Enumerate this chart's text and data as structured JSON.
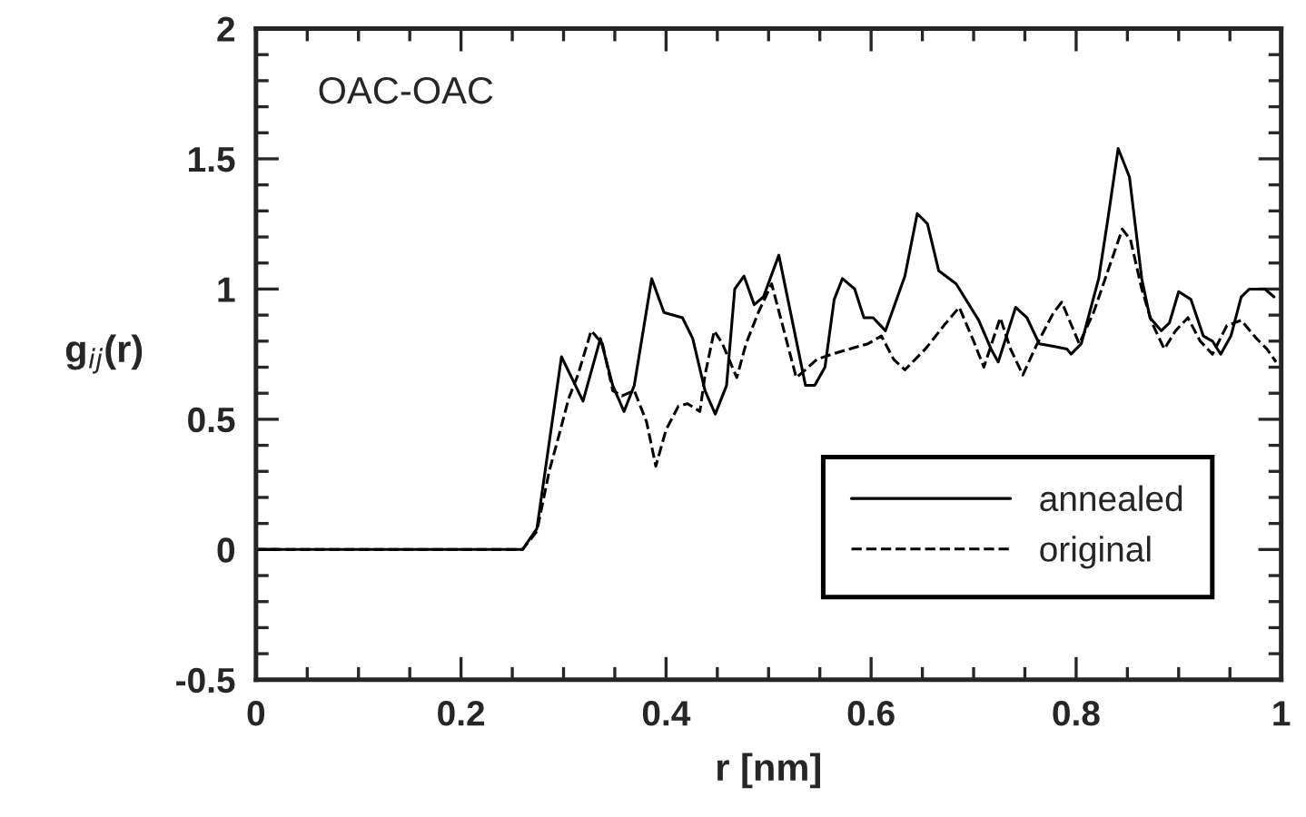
{
  "chart_data": {
    "type": "line",
    "xlabel": "r [nm]",
    "ylabel": "g$_{ij}$(r)",
    "annotations": [
      "OAC-OAC"
    ],
    "xlim": [
      0,
      1
    ],
    "ylim": [
      -0.5,
      2
    ],
    "xticks": [
      0,
      0.2,
      0.4,
      0.6,
      0.8,
      1
    ],
    "yticks": [
      -0.5,
      0,
      0.5,
      1,
      1.5,
      2
    ],
    "grid": false,
    "legend": "bottom right",
    "marker": "none",
    "series": [
      {
        "name": "annealed",
        "color": "#000000",
        "line_style": "solid",
        "x": [
          0,
          0.26,
          0.274,
          0.298,
          0.319,
          0.336,
          0.348,
          0.359,
          0.369,
          0.386,
          0.398,
          0.416,
          0.426,
          0.438,
          0.448,
          0.459,
          0.467,
          0.476,
          0.486,
          0.495,
          0.51,
          0.536,
          0.545,
          0.555,
          0.564,
          0.572,
          0.584,
          0.593,
          0.602,
          0.614,
          0.633,
          0.645,
          0.655,
          0.666,
          0.683,
          0.705,
          0.717,
          0.724,
          0.741,
          0.752,
          0.764,
          0.778,
          0.791,
          0.795,
          0.805,
          0.822,
          0.831,
          0.841,
          0.852,
          0.864,
          0.872,
          0.883,
          0.891,
          0.9,
          0.912,
          0.924,
          0.933,
          0.941,
          0.951,
          0.961,
          0.969,
          0.984,
          0.993
        ],
        "values": [
          0,
          0,
          0.08,
          0.74,
          0.57,
          0.81,
          0.63,
          0.53,
          0.63,
          1.04,
          0.91,
          0.89,
          0.81,
          0.61,
          0.52,
          0.63,
          1.0,
          1.05,
          0.94,
          0.97,
          1.13,
          0.63,
          0.63,
          0.7,
          0.96,
          1.04,
          1.0,
          0.89,
          0.89,
          0.84,
          1.05,
          1.29,
          1.25,
          1.07,
          1.02,
          0.88,
          0.77,
          0.72,
          0.93,
          0.89,
          0.79,
          0.78,
          0.77,
          0.75,
          0.79,
          1.04,
          1.27,
          1.54,
          1.43,
          1.04,
          0.89,
          0.84,
          0.87,
          0.99,
          0.96,
          0.82,
          0.8,
          0.75,
          0.82,
          0.97,
          1.0,
          1.0,
          0.97
        ]
      },
      {
        "name": "original",
        "color": "#000000",
        "line_style": "dashed",
        "x": [
          0,
          0.26,
          0.274,
          0.286,
          0.297,
          0.305,
          0.314,
          0.327,
          0.338,
          0.348,
          0.357,
          0.369,
          0.381,
          0.39,
          0.4,
          0.412,
          0.421,
          0.433,
          0.438,
          0.447,
          0.455,
          0.469,
          0.478,
          0.49,
          0.503,
          0.527,
          0.536,
          0.547,
          0.562,
          0.579,
          0.597,
          0.61,
          0.622,
          0.633,
          0.653,
          0.671,
          0.686,
          0.7,
          0.71,
          0.726,
          0.736,
          0.748,
          0.762,
          0.778,
          0.786,
          0.803,
          0.817,
          0.831,
          0.845,
          0.853,
          0.864,
          0.874,
          0.886,
          0.897,
          0.909,
          0.921,
          0.933,
          0.947,
          0.961,
          0.976,
          0.986,
          0.995
        ],
        "values": [
          0,
          0,
          0.07,
          0.3,
          0.46,
          0.58,
          0.67,
          0.84,
          0.79,
          0.61,
          0.59,
          0.61,
          0.49,
          0.32,
          0.46,
          0.55,
          0.56,
          0.53,
          0.67,
          0.84,
          0.79,
          0.66,
          0.79,
          0.91,
          1.02,
          0.66,
          0.69,
          0.73,
          0.75,
          0.77,
          0.79,
          0.82,
          0.73,
          0.69,
          0.77,
          0.86,
          0.93,
          0.8,
          0.7,
          0.89,
          0.77,
          0.67,
          0.79,
          0.91,
          0.95,
          0.79,
          0.91,
          1.07,
          1.23,
          1.19,
          1.0,
          0.87,
          0.77,
          0.84,
          0.89,
          0.8,
          0.75,
          0.86,
          0.88,
          0.81,
          0.77,
          0.72
        ]
      }
    ]
  }
}
